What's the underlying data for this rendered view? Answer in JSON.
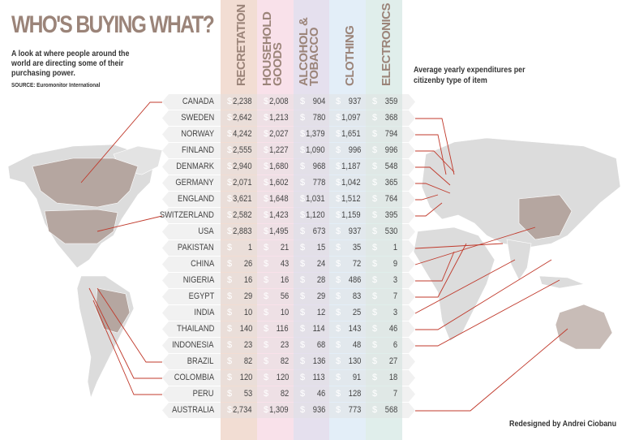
{
  "header": {
    "title": "WHO'S BUYING WHAT?",
    "subtitle": "A look at where people around the world are directing some of their purchasing power.",
    "source": "SOURCE: Euromonitor International",
    "note": "Average yearly expenditures per citizenby type of item",
    "credit": "Redesigned by Andrei Ciobanu"
  },
  "colors": {
    "title": "#9b8479",
    "leader_lines": "#c0392b",
    "map_fill": "#dcdcdc",
    "map_highlight": "#b5a6a0"
  },
  "chart_data": {
    "type": "table",
    "currency_symbol": "$",
    "columns": [
      {
        "label": "RECRETATION",
        "color": "#f2ddd3"
      },
      {
        "label": "HOUSEHOLD\nGOODS",
        "color": "#f9e1ea"
      },
      {
        "label": "ALCOHOL &\nTOBACCO",
        "color": "#e5e0ee"
      },
      {
        "label": "CLOTHING",
        "color": "#e3eef8"
      },
      {
        "label": "ELECTRONICS",
        "color": "#e0eeeb"
      }
    ],
    "rows": [
      {
        "country": "CANADA",
        "values": [
          "2,238",
          "2,008",
          "904",
          "937",
          "359"
        ]
      },
      {
        "country": "SWEDEN",
        "values": [
          "2,642",
          "1,213",
          "780",
          "1,097",
          "368"
        ]
      },
      {
        "country": "NORWAY",
        "values": [
          "4,242",
          "2,027",
          "1,379",
          "1,651",
          "794"
        ]
      },
      {
        "country": "FINLAND",
        "values": [
          "2,555",
          "1,227",
          "1,090",
          "996",
          "996"
        ]
      },
      {
        "country": "DENMARK",
        "values": [
          "2,940",
          "1,680",
          "968",
          "1,187",
          "548"
        ]
      },
      {
        "country": "GERMANY",
        "values": [
          "2,071",
          "1,602",
          "778",
          "1,042",
          "365"
        ]
      },
      {
        "country": "ENGLAND",
        "values": [
          "3,621",
          "1,648",
          "1,031",
          "1,512",
          "764"
        ]
      },
      {
        "country": "SWITZERLAND",
        "values": [
          "2,582",
          "1,423",
          "1,120",
          "1,159",
          "395"
        ]
      },
      {
        "country": "USA",
        "values": [
          "2,883",
          "1,495",
          "673",
          "937",
          "530"
        ]
      },
      {
        "country": "PAKISTAN",
        "values": [
          "1",
          "21",
          "15",
          "35",
          "1"
        ]
      },
      {
        "country": "CHINA",
        "values": [
          "26",
          "43",
          "24",
          "72",
          "9"
        ]
      },
      {
        "country": "NIGERIA",
        "values": [
          "16",
          "16",
          "28",
          "486",
          "3"
        ]
      },
      {
        "country": "EGYPT",
        "values": [
          "29",
          "56",
          "29",
          "83",
          "7"
        ]
      },
      {
        "country": "INDIA",
        "values": [
          "10",
          "10",
          "12",
          "25",
          "3"
        ]
      },
      {
        "country": "THAILAND",
        "values": [
          "140",
          "116",
          "114",
          "143",
          "46"
        ]
      },
      {
        "country": "INDONESIA",
        "values": [
          "23",
          "23",
          "68",
          "48",
          "6"
        ]
      },
      {
        "country": "BRAZIL",
        "values": [
          "82",
          "82",
          "136",
          "130",
          "27"
        ]
      },
      {
        "country": "COLOMBIA",
        "values": [
          "120",
          "120",
          "113",
          "91",
          "18"
        ]
      },
      {
        "country": "PERU",
        "values": [
          "53",
          "82",
          "46",
          "128",
          "7"
        ]
      },
      {
        "country": "AUSTRALIA",
        "values": [
          "2,734",
          "1,309",
          "936",
          "773",
          "568"
        ]
      }
    ]
  }
}
